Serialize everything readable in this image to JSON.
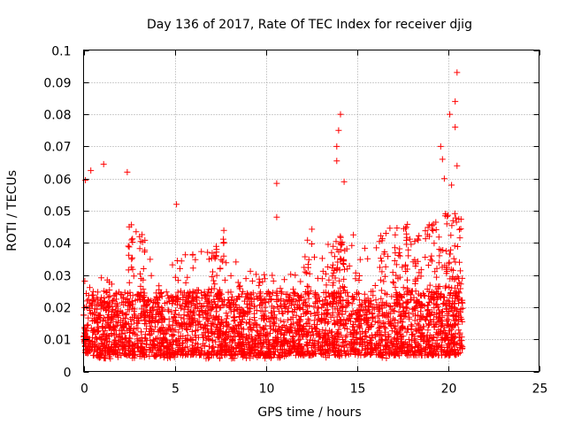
{
  "chart_data": {
    "type": "scatter",
    "title": "Day 136 of 2017, Rate Of TEC Index for receiver djig",
    "xlabel": "GPS time / hours",
    "ylabel": "ROTI / TECUs",
    "xlim": [
      0,
      25
    ],
    "ylim": [
      0,
      0.1
    ],
    "x_ticks": [
      0,
      5,
      10,
      15,
      20,
      25
    ],
    "x_tick_labels": [
      "0",
      "5",
      "10",
      "15",
      "20",
      "25"
    ],
    "y_ticks": [
      0,
      0.01,
      0.02,
      0.03,
      0.04,
      0.05,
      0.06,
      0.07,
      0.08,
      0.09,
      0.1
    ],
    "y_tick_labels": [
      "0",
      "0.01",
      "0.02",
      "0.03",
      "0.04",
      "0.05",
      "0.06",
      "0.07",
      "0.08",
      "0.09",
      "0.1"
    ],
    "grid": true,
    "marker": "+",
    "color": "#ff0000",
    "series": [
      {
        "name": "ROTI",
        "notable_points": [
          {
            "x": 0.1,
            "y": 0.0595
          },
          {
            "x": 0.4,
            "y": 0.0625
          },
          {
            "x": 1.1,
            "y": 0.0645
          },
          {
            "x": 2.4,
            "y": 0.062
          },
          {
            "x": 5.1,
            "y": 0.052
          },
          {
            "x": 10.6,
            "y": 0.0585
          },
          {
            "x": 10.6,
            "y": 0.048
          },
          {
            "x": 14.1,
            "y": 0.08
          },
          {
            "x": 14.0,
            "y": 0.075
          },
          {
            "x": 13.9,
            "y": 0.07
          },
          {
            "x": 13.9,
            "y": 0.0655
          },
          {
            "x": 14.3,
            "y": 0.059
          },
          {
            "x": 19.6,
            "y": 0.07
          },
          {
            "x": 19.7,
            "y": 0.066
          },
          {
            "x": 20.1,
            "y": 0.08
          },
          {
            "x": 20.4,
            "y": 0.084
          },
          {
            "x": 20.5,
            "y": 0.093
          },
          {
            "x": 20.4,
            "y": 0.076
          },
          {
            "x": 20.5,
            "y": 0.064
          },
          {
            "x": 19.8,
            "y": 0.06
          },
          {
            "x": 20.2,
            "y": 0.058
          }
        ],
        "cluster_envelope": [
          {
            "x": 0.0,
            "y_min": 0.006,
            "y_max": 0.03
          },
          {
            "x": 1.0,
            "y_min": 0.004,
            "y_max": 0.03
          },
          {
            "x": 2.0,
            "y_min": 0.004,
            "y_max": 0.025
          },
          {
            "x": 2.5,
            "y_min": 0.004,
            "y_max": 0.047
          },
          {
            "x": 3.5,
            "y_min": 0.004,
            "y_max": 0.042
          },
          {
            "x": 4.5,
            "y_min": 0.004,
            "y_max": 0.03
          },
          {
            "x": 5.5,
            "y_min": 0.005,
            "y_max": 0.042
          },
          {
            "x": 6.2,
            "y_min": 0.005,
            "y_max": 0.035
          },
          {
            "x": 6.5,
            "y_min": 0.004,
            "y_max": 0.038
          },
          {
            "x": 7.5,
            "y_min": 0.004,
            "y_max": 0.045
          },
          {
            "x": 8.5,
            "y_min": 0.004,
            "y_max": 0.035
          },
          {
            "x": 9.5,
            "y_min": 0.004,
            "y_max": 0.033
          },
          {
            "x": 10.5,
            "y_min": 0.004,
            "y_max": 0.036
          },
          {
            "x": 11.5,
            "y_min": 0.005,
            "y_max": 0.03
          },
          {
            "x": 12.5,
            "y_min": 0.005,
            "y_max": 0.045
          },
          {
            "x": 13.5,
            "y_min": 0.004,
            "y_max": 0.04
          },
          {
            "x": 14.5,
            "y_min": 0.005,
            "y_max": 0.045
          },
          {
            "x": 15.5,
            "y_min": 0.005,
            "y_max": 0.038
          },
          {
            "x": 16.5,
            "y_min": 0.004,
            "y_max": 0.045
          },
          {
            "x": 17.5,
            "y_min": 0.005,
            "y_max": 0.047
          },
          {
            "x": 18.5,
            "y_min": 0.005,
            "y_max": 0.045
          },
          {
            "x": 19.5,
            "y_min": 0.005,
            "y_max": 0.047
          },
          {
            "x": 20.5,
            "y_min": 0.005,
            "y_max": 0.052
          },
          {
            "x": 20.8,
            "y_min": 0.005,
            "y_max": 0.04
          }
        ],
        "dense_band": {
          "x_range": [
            0,
            20.8
          ],
          "y_range": [
            0.005,
            0.025
          ]
        }
      }
    ]
  }
}
